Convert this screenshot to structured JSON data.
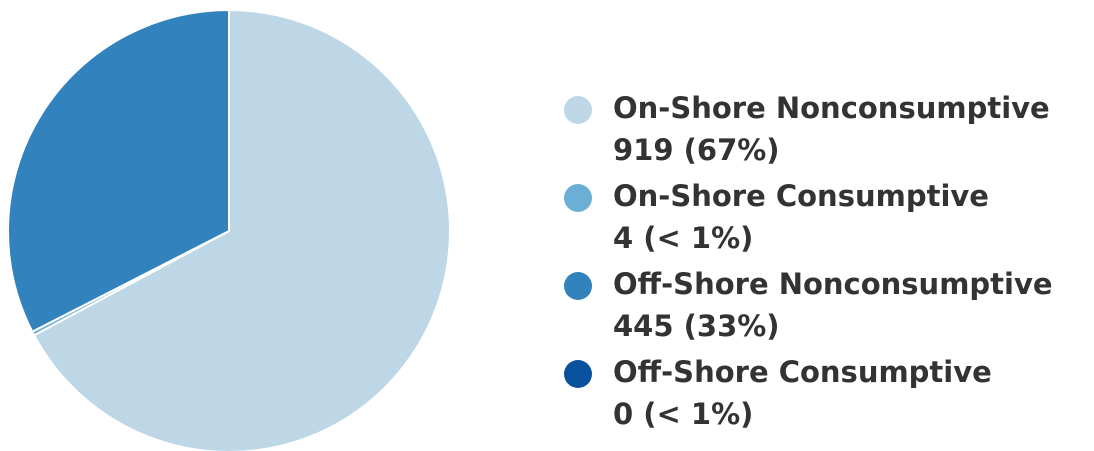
{
  "chart_data": {
    "type": "pie",
    "categories": [
      "On-Shore Nonconsumptive",
      "On-Shore Consumptive",
      "Off-Shore Nonconsumptive",
      "Off-Shore Consumptive"
    ],
    "values": [
      919,
      4,
      445,
      0
    ],
    "value_labels": [
      "919 (67%)",
      "4 (< 1%)",
      "445 (33%)",
      "0 (< 1%)"
    ],
    "colors": [
      "#bdd7e7",
      "#6baed6",
      "#3182bd",
      "#08519c"
    ],
    "legend": "right"
  }
}
